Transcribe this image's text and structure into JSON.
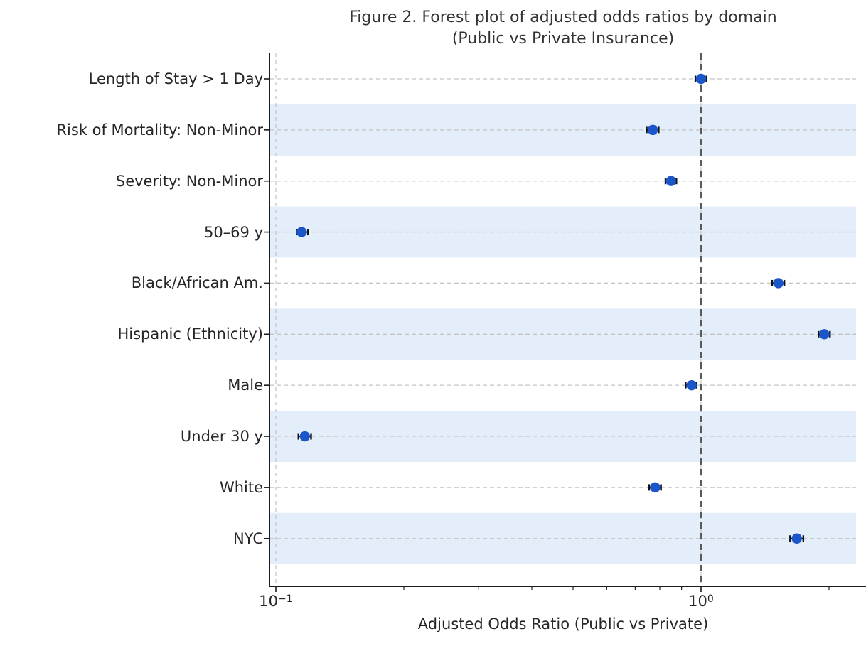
{
  "figure": {
    "title_line1": "Figure 2. Forest plot of adjusted odds ratios by domain",
    "title_line2": "(Public vs Private Insurance)",
    "xlabel": "Adjusted Odds Ratio (Public vs Private)"
  },
  "chart_data": {
    "type": "scatter",
    "subtype": "forest-plot",
    "title": "Figure 2. Forest plot of adjusted odds ratios by domain (Public vs Private Insurance)",
    "xlabel": "Adjusted Odds Ratio (Public vs Private)",
    "ylabel": "",
    "x_scale": "log",
    "xlim": [
      0.0966,
      2.315
    ],
    "grid": true,
    "legend": "none",
    "reference_line_x": 1.0,
    "categories": [
      "Length of Stay > 1 Day",
      "Risk of Mortality: Non-Minor",
      "Severity: Non-Minor",
      "50–69 y",
      "Black/African Am.",
      "Hispanic (Ethnicity)",
      "Male",
      "Under 30 y",
      "White",
      "NYC"
    ],
    "series": [
      {
        "name": "Adjusted Odds Ratio",
        "values": [
          1.0,
          0.77,
          0.85,
          0.115,
          1.52,
          1.95,
          0.95,
          0.117,
          0.78,
          1.68
        ],
        "ci_low": [
          0.97,
          0.745,
          0.825,
          0.112,
          1.47,
          1.89,
          0.92,
          0.113,
          0.755,
          1.62
        ],
        "ci_high": [
          1.03,
          0.795,
          0.875,
          0.119,
          1.57,
          2.01,
          0.975,
          0.121,
          0.805,
          1.74
        ]
      }
    ],
    "x_major_ticks": [
      {
        "value": 0.1,
        "base": "10",
        "exp": "−1"
      },
      {
        "value": 1.0,
        "base": "10",
        "exp": "0"
      }
    ],
    "x_minor_ticks": [
      0.2,
      0.3,
      0.4,
      0.5,
      0.6,
      0.7,
      0.8,
      0.9,
      2.0
    ],
    "shaded_row_indices": [
      1,
      3,
      5,
      7,
      9
    ],
    "colors": {
      "point": "#1a56c9",
      "error_bar": "#111111",
      "row_band": "#e4eefb",
      "gridline": "#c4c4c4",
      "reference_line": "#5a5a5a",
      "spine": "#1c1c1c",
      "text": "#262626"
    }
  }
}
